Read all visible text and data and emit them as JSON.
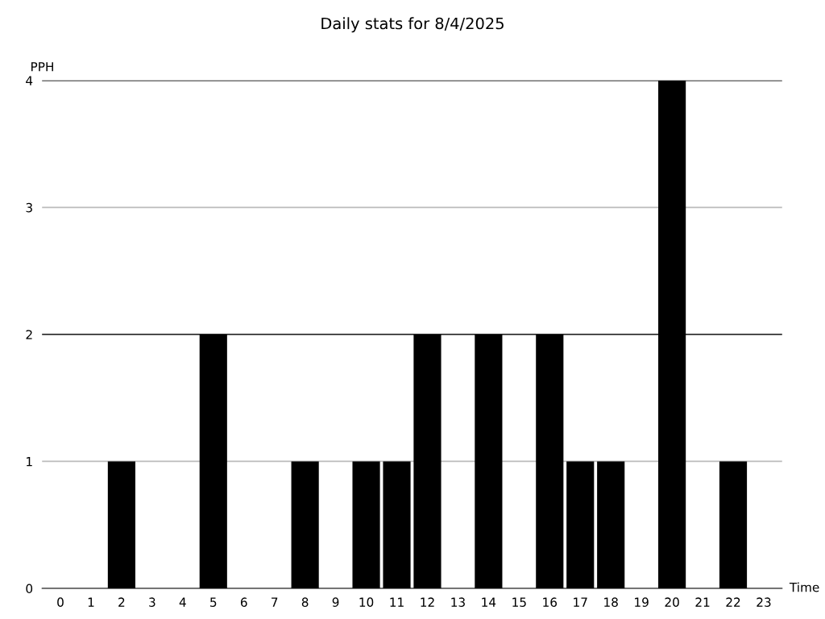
{
  "chart_data": {
    "type": "bar",
    "title": "Daily stats for 8/4/2025",
    "xlabel": "Time",
    "ylabel": "PPH",
    "categories": [
      "0",
      "1",
      "2",
      "3",
      "4",
      "5",
      "6",
      "7",
      "8",
      "9",
      "10",
      "11",
      "12",
      "13",
      "14",
      "15",
      "16",
      "17",
      "18",
      "19",
      "20",
      "21",
      "22",
      "23"
    ],
    "values": [
      0,
      0,
      1,
      0,
      0,
      2,
      0,
      0,
      1,
      0,
      1,
      1,
      2,
      0,
      2,
      0,
      2,
      1,
      1,
      0,
      4,
      0,
      1,
      0
    ],
    "color": "#000000",
    "ylim": [
      0,
      4
    ],
    "yticks": [
      0,
      1,
      2,
      3,
      4
    ],
    "grid": "y",
    "ref_lines": [
      {
        "axis": "y",
        "value": 2,
        "color": "#000000"
      },
      {
        "axis": "y",
        "value": 4,
        "color": "#000000"
      }
    ]
  }
}
